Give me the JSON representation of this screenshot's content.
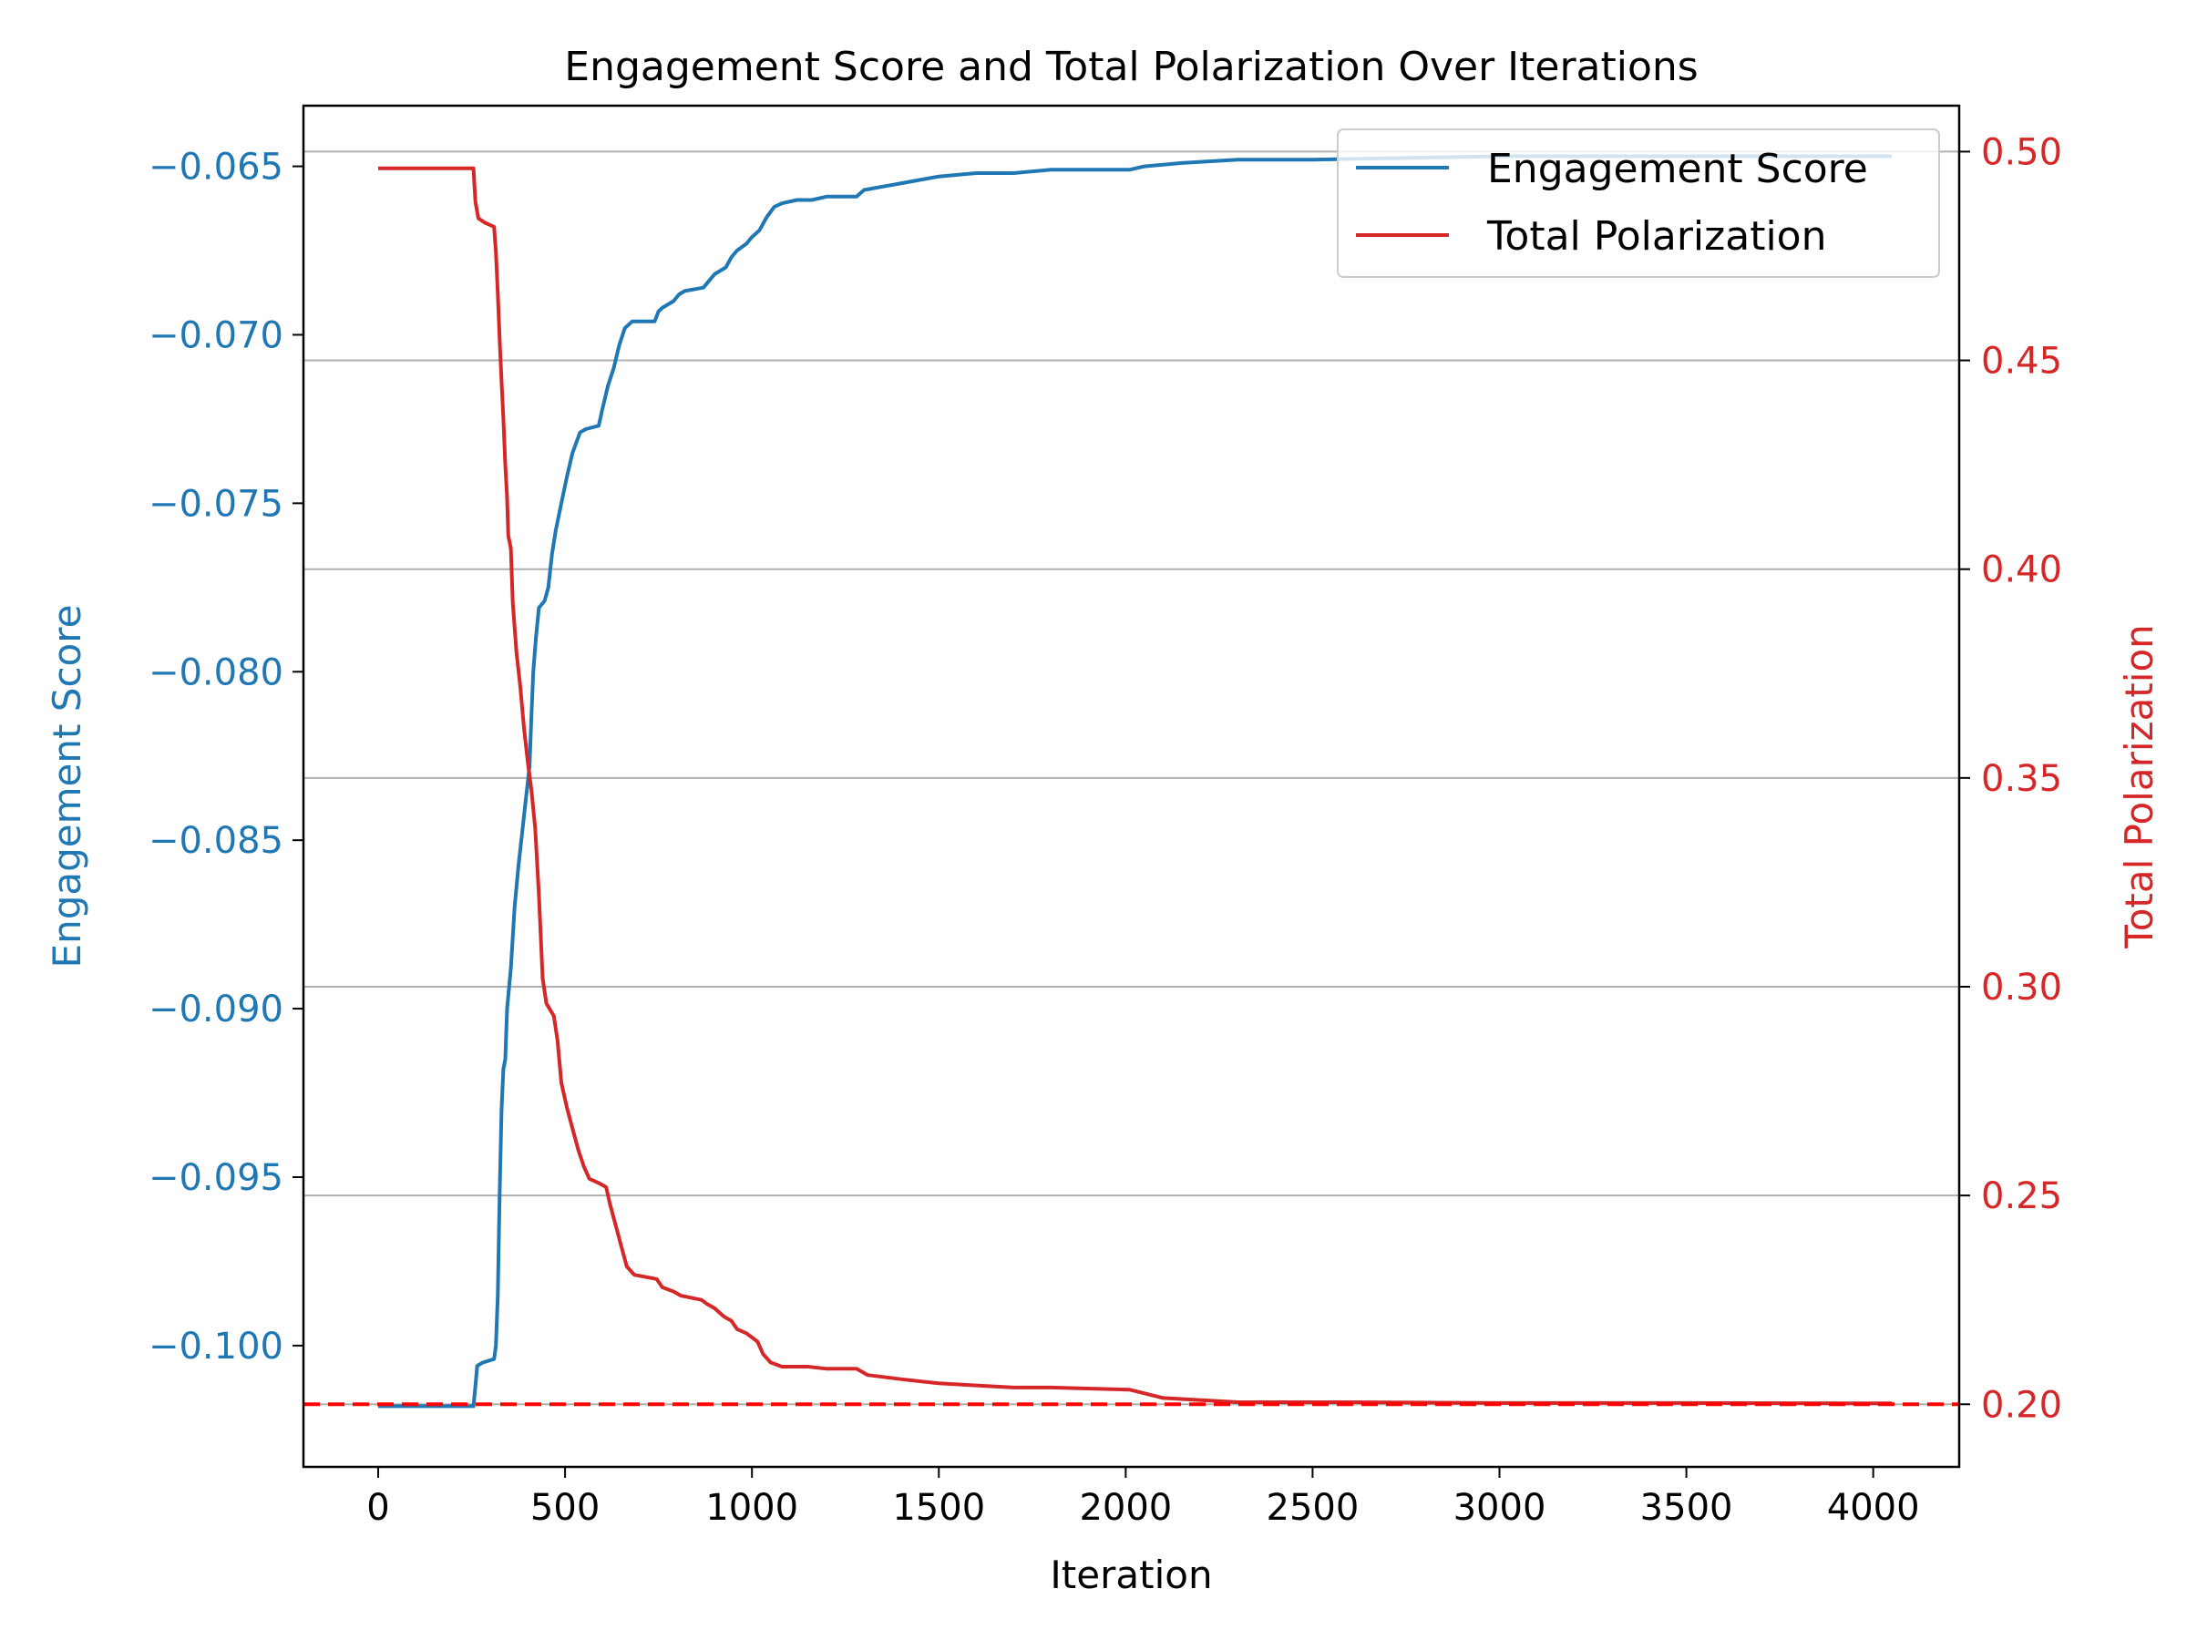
{
  "chart_data": {
    "type": "line",
    "title": "Engagement Score and Total Polarization Over Iterations",
    "xlabel": "Iteration",
    "xlim": [
      -200,
      4230
    ],
    "xticks": [
      0,
      500,
      1000,
      1500,
      2000,
      2500,
      3000,
      3500,
      4000
    ],
    "y_left": {
      "label": "Engagement Score",
      "color": "#1f77b4",
      "ylim": [
        -0.1036,
        -0.0632
      ],
      "ticks": [
        "−0.065",
        "−0.070",
        "−0.075",
        "−0.080",
        "−0.085",
        "−0.090",
        "−0.095",
        "−0.100"
      ],
      "tick_values": [
        -0.065,
        -0.07,
        -0.075,
        -0.08,
        -0.085,
        -0.09,
        -0.095,
        -0.1
      ]
    },
    "y_right": {
      "label": "Total Polarization",
      "color": "#d62728",
      "ylim": [
        0.185,
        0.511
      ],
      "ticks": [
        "0.50",
        "0.45",
        "0.40",
        "0.35",
        "0.30",
        "0.25",
        "0.20"
      ],
      "tick_values": [
        0.5,
        0.45,
        0.4,
        0.35,
        0.3,
        0.25,
        0.2
      ],
      "grid": true
    },
    "reference_line": {
      "axis": "right",
      "y": 0.2,
      "style": "dashed",
      "color": "#ff0000"
    },
    "legend": {
      "placement": "top-right",
      "entries": [
        "Engagement Score",
        "Total Polarization"
      ]
    },
    "series": [
      {
        "name": "Engagement Score",
        "axis": "left",
        "color": "#1f77b4",
        "points": [
          [
            0,
            -0.1018
          ],
          [
            255,
            -0.1018
          ],
          [
            260,
            -0.1012
          ],
          [
            265,
            -0.1006
          ],
          [
            280,
            -0.1005
          ],
          [
            310,
            -0.1004
          ],
          [
            315,
            -0.1
          ],
          [
            320,
            -0.0985
          ],
          [
            325,
            -0.0955
          ],
          [
            330,
            -0.093
          ],
          [
            335,
            -0.0918
          ],
          [
            340,
            -0.0915
          ],
          [
            345,
            -0.09
          ],
          [
            355,
            -0.0888
          ],
          [
            365,
            -0.087
          ],
          [
            375,
            -0.0858
          ],
          [
            385,
            -0.0848
          ],
          [
            395,
            -0.0838
          ],
          [
            405,
            -0.0828
          ],
          [
            410,
            -0.0813
          ],
          [
            415,
            -0.08
          ],
          [
            422,
            -0.079
          ],
          [
            430,
            -0.0781
          ],
          [
            445,
            -0.0779
          ],
          [
            455,
            -0.0775
          ],
          [
            465,
            -0.0765
          ],
          [
            475,
            -0.0758
          ],
          [
            490,
            -0.075
          ],
          [
            505,
            -0.0742
          ],
          [
            520,
            -0.0735
          ],
          [
            540,
            -0.0729
          ],
          [
            555,
            -0.0728
          ],
          [
            590,
            -0.0727
          ],
          [
            600,
            -0.0722
          ],
          [
            615,
            -0.0715
          ],
          [
            630,
            -0.071
          ],
          [
            645,
            -0.0703
          ],
          [
            660,
            -0.0698
          ],
          [
            680,
            -0.0696
          ],
          [
            740,
            -0.0696
          ],
          [
            750,
            -0.0693
          ],
          [
            760,
            -0.0692
          ],
          [
            790,
            -0.069
          ],
          [
            805,
            -0.0688
          ],
          [
            820,
            -0.0687
          ],
          [
            870,
            -0.0686
          ],
          [
            885,
            -0.0684
          ],
          [
            900,
            -0.0682
          ],
          [
            930,
            -0.068
          ],
          [
            945,
            -0.0677
          ],
          [
            960,
            -0.0675
          ],
          [
            985,
            -0.0673
          ],
          [
            1000,
            -0.0671
          ],
          [
            1020,
            -0.0669
          ],
          [
            1040,
            -0.0665
          ],
          [
            1060,
            -0.0662
          ],
          [
            1080,
            -0.0661
          ],
          [
            1120,
            -0.066
          ],
          [
            1160,
            -0.066
          ],
          [
            1200,
            -0.0659
          ],
          [
            1280,
            -0.0659
          ],
          [
            1300,
            -0.0657
          ],
          [
            1350,
            -0.0656
          ],
          [
            1400,
            -0.0655
          ],
          [
            1450,
            -0.0654
          ],
          [
            1500,
            -0.0653
          ],
          [
            1600,
            -0.0652
          ],
          [
            1700,
            -0.0652
          ],
          [
            1800,
            -0.0651
          ],
          [
            2010,
            -0.0651
          ],
          [
            2050,
            -0.065
          ],
          [
            2150,
            -0.0649
          ],
          [
            2300,
            -0.0648
          ],
          [
            2500,
            -0.0648
          ],
          [
            3000,
            -0.0647
          ],
          [
            4050,
            -0.0647
          ]
        ]
      },
      {
        "name": "Total Polarization",
        "axis": "right",
        "color": "#d62728",
        "points": [
          [
            0,
            0.496
          ],
          [
            255,
            0.496
          ],
          [
            260,
            0.488
          ],
          [
            268,
            0.484
          ],
          [
            285,
            0.483
          ],
          [
            310,
            0.482
          ],
          [
            315,
            0.476
          ],
          [
            320,
            0.466
          ],
          [
            325,
            0.455
          ],
          [
            330,
            0.445
          ],
          [
            335,
            0.436
          ],
          [
            340,
            0.425
          ],
          [
            345,
            0.417
          ],
          [
            348,
            0.408
          ],
          [
            355,
            0.405
          ],
          [
            360,
            0.392
          ],
          [
            370,
            0.38
          ],
          [
            380,
            0.372
          ],
          [
            390,
            0.362
          ],
          [
            400,
            0.354
          ],
          [
            410,
            0.347
          ],
          [
            420,
            0.338
          ],
          [
            430,
            0.322
          ],
          [
            440,
            0.302
          ],
          [
            450,
            0.296
          ],
          [
            470,
            0.293
          ],
          [
            480,
            0.287
          ],
          [
            490,
            0.277
          ],
          [
            505,
            0.271
          ],
          [
            520,
            0.266
          ],
          [
            535,
            0.261
          ],
          [
            550,
            0.257
          ],
          [
            565,
            0.254
          ],
          [
            590,
            0.253
          ],
          [
            610,
            0.252
          ],
          [
            620,
            0.248
          ],
          [
            635,
            0.243
          ],
          [
            650,
            0.238
          ],
          [
            665,
            0.233
          ],
          [
            685,
            0.231
          ],
          [
            745,
            0.23
          ],
          [
            760,
            0.228
          ],
          [
            790,
            0.227
          ],
          [
            810,
            0.226
          ],
          [
            865,
            0.225
          ],
          [
            880,
            0.224
          ],
          [
            900,
            0.223
          ],
          [
            925,
            0.221
          ],
          [
            945,
            0.22
          ],
          [
            960,
            0.218
          ],
          [
            985,
            0.217
          ],
          [
            1000,
            0.216
          ],
          [
            1015,
            0.215
          ],
          [
            1030,
            0.212
          ],
          [
            1050,
            0.21
          ],
          [
            1080,
            0.209
          ],
          [
            1150,
            0.209
          ],
          [
            1200,
            0.2085
          ],
          [
            1280,
            0.2085
          ],
          [
            1310,
            0.207
          ],
          [
            1400,
            0.206
          ],
          [
            1500,
            0.205
          ],
          [
            1600,
            0.2045
          ],
          [
            1700,
            0.204
          ],
          [
            1800,
            0.204
          ],
          [
            2010,
            0.2035
          ],
          [
            2100,
            0.2015
          ],
          [
            2300,
            0.2005
          ],
          [
            2600,
            0.2005
          ],
          [
            3000,
            0.2003
          ],
          [
            3500,
            0.2003
          ],
          [
            4050,
            0.2002
          ]
        ]
      }
    ]
  }
}
